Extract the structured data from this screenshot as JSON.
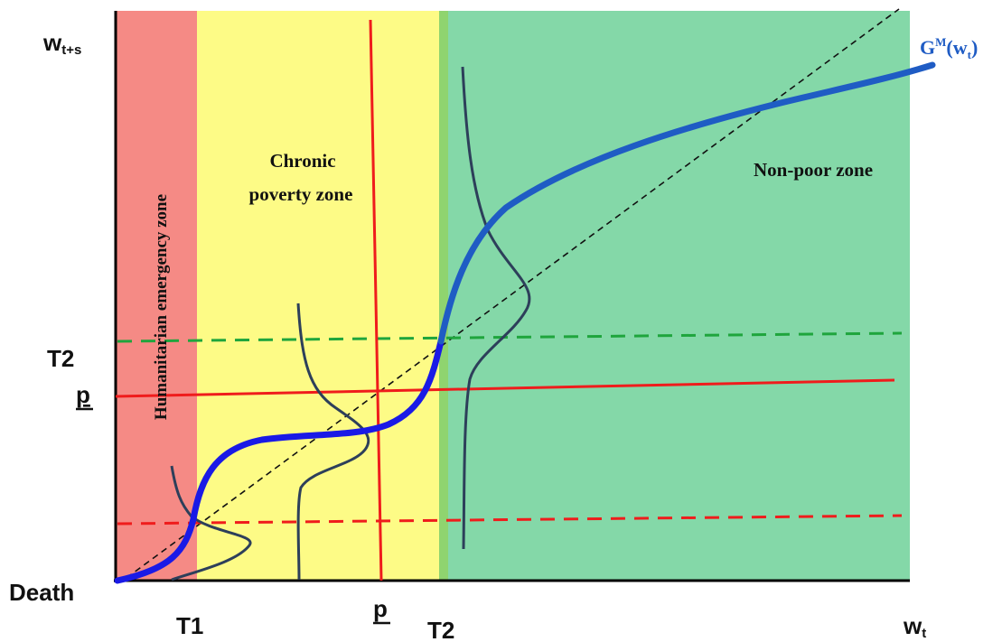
{
  "axes": {
    "y_label_main": "w",
    "y_label_sub": "t+s",
    "x_label_main": "w",
    "x_label_sub": "t",
    "origin_label": "Death"
  },
  "y_ticks": {
    "t2": "T2",
    "p": "p"
  },
  "x_ticks": {
    "t1": "T1",
    "p": "p",
    "t2": "T2"
  },
  "zones": {
    "humanitarian": {
      "label": "Humanitarian emergency zone",
      "color": "#f58a85"
    },
    "chronic": {
      "label_line1": "Chronic",
      "label_line2": "poverty zone",
      "color": "#fdfb86"
    },
    "boundary": {
      "color": "#8fd46f"
    },
    "nonpoor": {
      "label": "Non-poor zone",
      "color": "#84d8a8"
    }
  },
  "curve": {
    "label_main": "G",
    "label_sup": "M",
    "label_paren_open": "(w",
    "label_sub": "t",
    "label_paren_close": ")",
    "color": "#1f5cc4"
  },
  "colors": {
    "red_line": "#ef1c1c",
    "green_dashed": "#1fa53d",
    "red_dashed": "#ef1c1c",
    "diagonal": "#111111",
    "distribution": "#2d3f5a",
    "curve_lower": "#1a1ae6",
    "curve_upper": "#1f5cc4"
  }
}
